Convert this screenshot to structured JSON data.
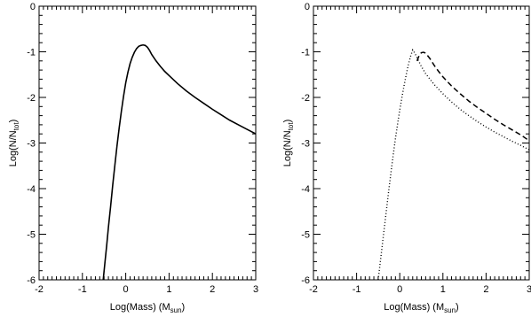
{
  "chart_data": [
    {
      "type": "line",
      "xlabel": "Log(Mass)  (M",
      "xlabel_sub": "sun",
      "xlabel_close": ")",
      "ylabel": "Log(N/N",
      "ylabel_sub": "tot",
      "ylabel_close": ")",
      "xlim": [
        -2,
        3
      ],
      "ylim": [
        -6,
        0
      ],
      "xticks": [
        -2,
        -1,
        0,
        1,
        2,
        3
      ],
      "yticks": [
        0,
        -1,
        -2,
        -3,
        -4,
        -5,
        -6
      ],
      "xtick_labels": [
        "-2",
        "-1",
        "0",
        "1",
        "2",
        "3"
      ],
      "ytick_labels": [
        "0",
        "-1",
        "-2",
        "-3",
        "-4",
        "-5",
        "-6"
      ],
      "grid": false,
      "series": [
        {
          "style": "solid",
          "x": [
            -0.52,
            -0.48,
            -0.44,
            -0.4,
            -0.35,
            -0.3,
            -0.25,
            -0.2,
            -0.15,
            -0.1,
            -0.05,
            0.0,
            0.05,
            0.1,
            0.15,
            0.2,
            0.25,
            0.3,
            0.35,
            0.4,
            0.45,
            0.5,
            0.55,
            0.6,
            0.7,
            0.8,
            0.9,
            1.0,
            1.2,
            1.4,
            1.6,
            1.8,
            2.0,
            2.2,
            2.4,
            2.6,
            2.8,
            3.0
          ],
          "y": [
            -6.0,
            -5.62,
            -5.25,
            -4.85,
            -4.4,
            -3.92,
            -3.48,
            -3.05,
            -2.66,
            -2.3,
            -1.97,
            -1.68,
            -1.45,
            -1.26,
            -1.12,
            -1.01,
            -0.93,
            -0.88,
            -0.86,
            -0.85,
            -0.86,
            -0.9,
            -0.97,
            -1.06,
            -1.2,
            -1.32,
            -1.43,
            -1.52,
            -1.7,
            -1.86,
            -2.0,
            -2.13,
            -2.26,
            -2.38,
            -2.5,
            -2.6,
            -2.7,
            -2.8
          ]
        }
      ]
    },
    {
      "type": "line",
      "xlabel": "Log(Mass)  (M",
      "xlabel_sub": "sun",
      "xlabel_close": ")",
      "ylabel": "Log(N/N",
      "ylabel_sub": "tot",
      "ylabel_close": ")",
      "xlim": [
        -2,
        3
      ],
      "ylim": [
        -6,
        0
      ],
      "xticks": [
        -2,
        -1,
        0,
        1,
        2,
        3
      ],
      "yticks": [
        0,
        -1,
        -2,
        -3,
        -4,
        -5,
        -6
      ],
      "xtick_labels": [
        "-2",
        "-1",
        "0",
        "1",
        "2",
        "3"
      ],
      "ytick_labels": [
        "0",
        "-1",
        "-2",
        "-3",
        "-4",
        "-5",
        "-6"
      ],
      "grid": false,
      "series": [
        {
          "style": "dotted",
          "x": [
            -0.5,
            -0.45,
            -0.4,
            -0.35,
            -0.3,
            -0.25,
            -0.2,
            -0.15,
            -0.1,
            -0.05,
            0.0,
            0.05,
            0.1,
            0.15,
            0.2,
            0.25,
            0.3,
            0.35,
            0.4,
            0.5,
            0.6,
            0.8,
            1.0,
            1.2,
            1.4,
            1.6,
            1.8,
            2.0,
            2.2,
            2.4,
            2.6,
            2.8,
            3.0
          ],
          "y": [
            -6.0,
            -5.6,
            -5.2,
            -4.8,
            -4.4,
            -4.0,
            -3.62,
            -3.25,
            -2.9,
            -2.58,
            -2.28,
            -2.0,
            -1.74,
            -1.5,
            -1.28,
            -1.1,
            -0.96,
            -1.03,
            -1.13,
            -1.32,
            -1.48,
            -1.72,
            -1.92,
            -2.1,
            -2.26,
            -2.4,
            -2.53,
            -2.65,
            -2.76,
            -2.86,
            -2.96,
            -3.05,
            -3.15
          ]
        },
        {
          "style": "dashed",
          "x": [
            0.4,
            0.45,
            0.5,
            0.55,
            0.6,
            0.7,
            0.8,
            0.9,
            1.0,
            1.2,
            1.4,
            1.6,
            1.8,
            2.0,
            2.2,
            2.4,
            2.6,
            2.8,
            3.0
          ],
          "y": [
            -1.2,
            -1.08,
            -1.02,
            -1.01,
            -1.03,
            -1.15,
            -1.3,
            -1.43,
            -1.55,
            -1.75,
            -1.92,
            -2.08,
            -2.22,
            -2.35,
            -2.48,
            -2.6,
            -2.71,
            -2.82,
            -2.95
          ]
        }
      ]
    }
  ]
}
